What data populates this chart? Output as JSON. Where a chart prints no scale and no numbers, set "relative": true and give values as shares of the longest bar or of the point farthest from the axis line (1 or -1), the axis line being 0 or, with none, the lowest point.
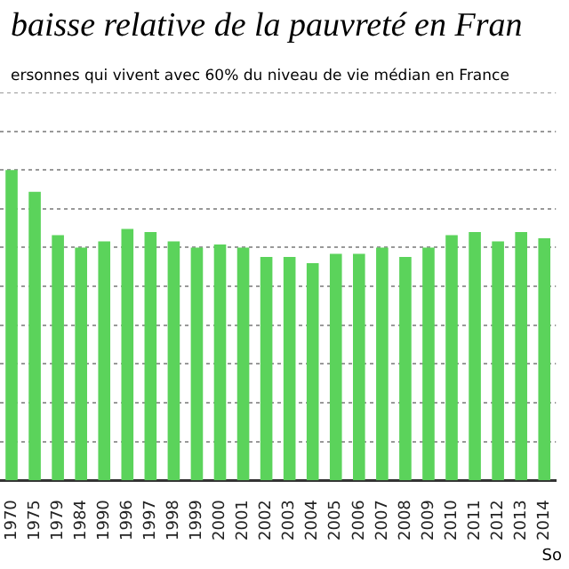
{
  "chart_data": {
    "type": "bar",
    "title": "baisse relative de la pauvreté en Fran",
    "subtitle": "ersonnes qui vivent avec 60% du niveau de vie médian en France",
    "annotations": [
      "So"
    ],
    "categories": [
      "1970",
      "1975",
      "1979",
      "1984",
      "1990",
      "1996",
      "1997",
      "1998",
      "1999",
      "2000",
      "2001",
      "2002",
      "2003",
      "2004",
      "2005",
      "2006",
      "2007",
      "2008",
      "2009",
      "2010",
      "2011",
      "2012",
      "2013",
      "2014"
    ],
    "values": [
      1,
      0.93,
      0.79,
      0.75,
      0.77,
      0.81,
      0.8,
      0.77,
      0.75,
      0.76,
      0.75,
      0.72,
      0.72,
      0.7,
      0.73,
      0.73,
      0.75,
      0.72,
      0.75,
      0.79,
      0.8,
      0.77,
      0.8,
      0.78
    ],
    "color": "#5bd35b",
    "relative": true,
    "grid": "y",
    "legend": false
  }
}
